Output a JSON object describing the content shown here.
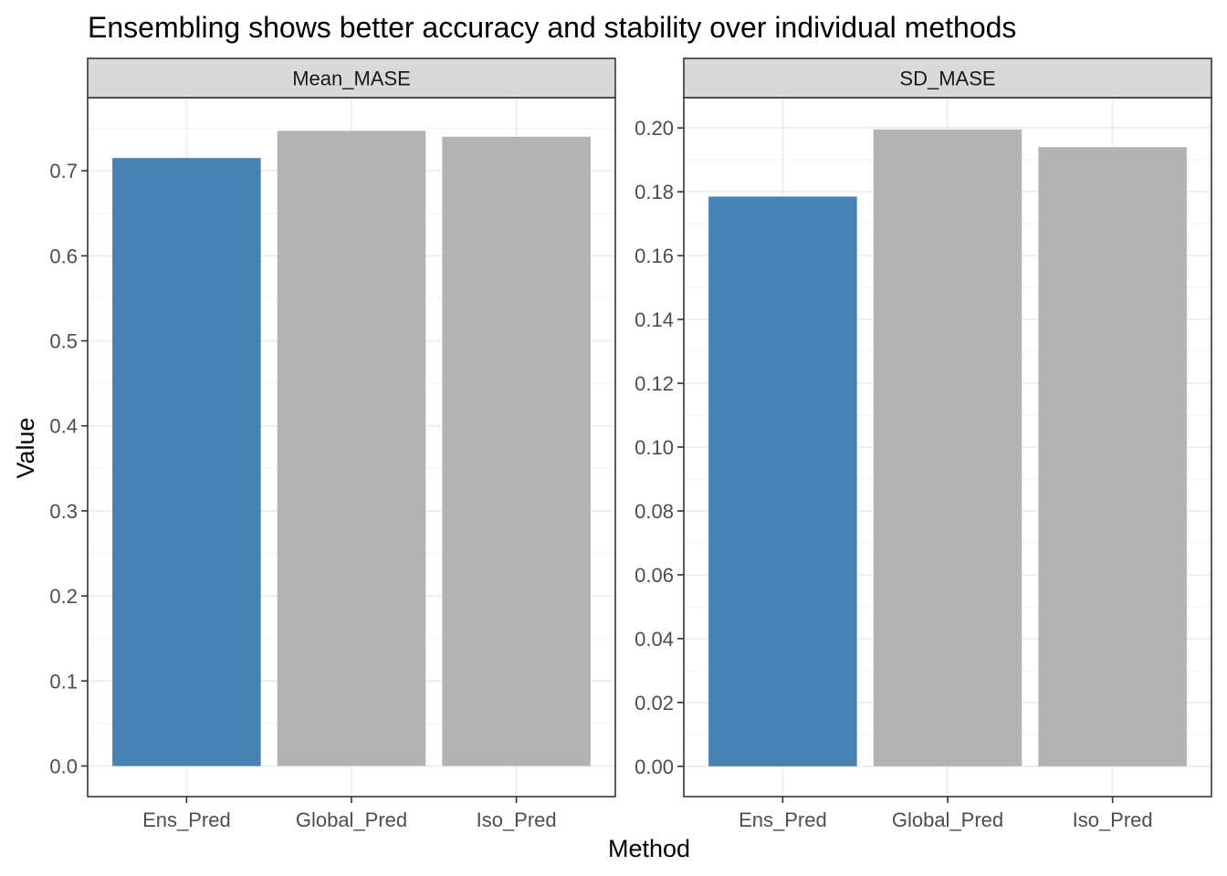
{
  "chart_data": {
    "type": "bar",
    "title": "Ensembling shows better accuracy and stability over individual methods",
    "xlabel": "Method",
    "ylabel": "Value",
    "categories": [
      "Ens_Pred",
      "Global_Pred",
      "Iso_Pred"
    ],
    "highlight_color": "#4682B4",
    "base_color": "#B3B3B3",
    "grid": true,
    "facets": [
      {
        "name": "Mean_MASE",
        "values": [
          0.715,
          0.747,
          0.74
        ],
        "colors": [
          "#4682B4",
          "#B3B3B3",
          "#B3B3B3"
        ],
        "ylim": [
          -0.036,
          0.786
        ],
        "ticks": [
          0.0,
          0.1,
          0.2,
          0.3,
          0.4,
          0.5,
          0.6,
          0.7
        ],
        "tick_labels": [
          "0.0",
          "0.1",
          "0.2",
          "0.3",
          "0.4",
          "0.5",
          "0.6",
          "0.7"
        ]
      },
      {
        "name": "SD_MASE",
        "values": [
          0.1785,
          0.1995,
          0.194
        ],
        "colors": [
          "#4682B4",
          "#B3B3B3",
          "#B3B3B3"
        ],
        "ylim": [
          -0.0095,
          0.2095
        ],
        "ticks": [
          0.0,
          0.02,
          0.04,
          0.06,
          0.08,
          0.1,
          0.12,
          0.14,
          0.16,
          0.18,
          0.2
        ],
        "tick_labels": [
          "0.00",
          "0.02",
          "0.04",
          "0.06",
          "0.08",
          "0.10",
          "0.12",
          "0.14",
          "0.16",
          "0.18",
          "0.20"
        ]
      }
    ]
  }
}
